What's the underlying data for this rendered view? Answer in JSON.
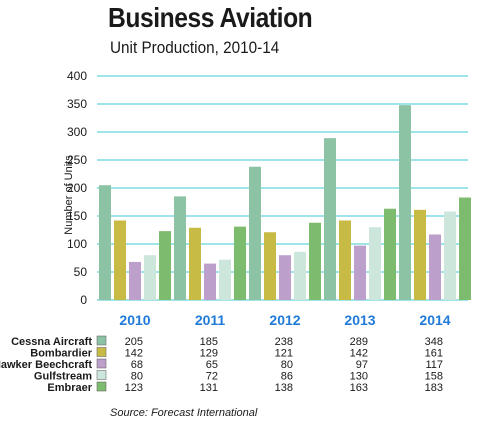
{
  "header": {
    "title": "Business Aviation",
    "subtitle": "Unit Production, 2010-14"
  },
  "source": "Source:  Forecast International",
  "colors": {
    "Cessna Aircraft": "#8cc3a5",
    "Bombardier": "#c8bb45",
    "Hawker Beechcraft": "#bc9fcb",
    "Gulfstream": "#cde6dc",
    "Embraer": "#7dbb6e",
    "grid": "#3ec9d3",
    "year": "#1f7ad8"
  },
  "chart_data": {
    "type": "bar",
    "title": "Business Aviation",
    "subtitle": "Unit Production, 2010-14",
    "ylabel": "Number of Units",
    "xlabel": "",
    "categories": [
      "2010",
      "2011",
      "2012",
      "2013",
      "2014"
    ],
    "ylim": [
      0,
      400
    ],
    "yticks": [
      0,
      50,
      100,
      150,
      200,
      250,
      300,
      350,
      400
    ],
    "grid": true,
    "series": [
      {
        "name": "Cessna Aircraft",
        "values": [
          205,
          185,
          238,
          289,
          348
        ]
      },
      {
        "name": "Bombardier",
        "values": [
          142,
          129,
          121,
          142,
          161
        ]
      },
      {
        "name": "Hawker Beechcraft",
        "values": [
          68,
          65,
          80,
          97,
          117
        ]
      },
      {
        "name": "Gulfstream",
        "values": [
          80,
          72,
          86,
          130,
          158
        ]
      },
      {
        "name": "Embraer",
        "values": [
          123,
          131,
          138,
          163,
          183
        ]
      }
    ]
  }
}
